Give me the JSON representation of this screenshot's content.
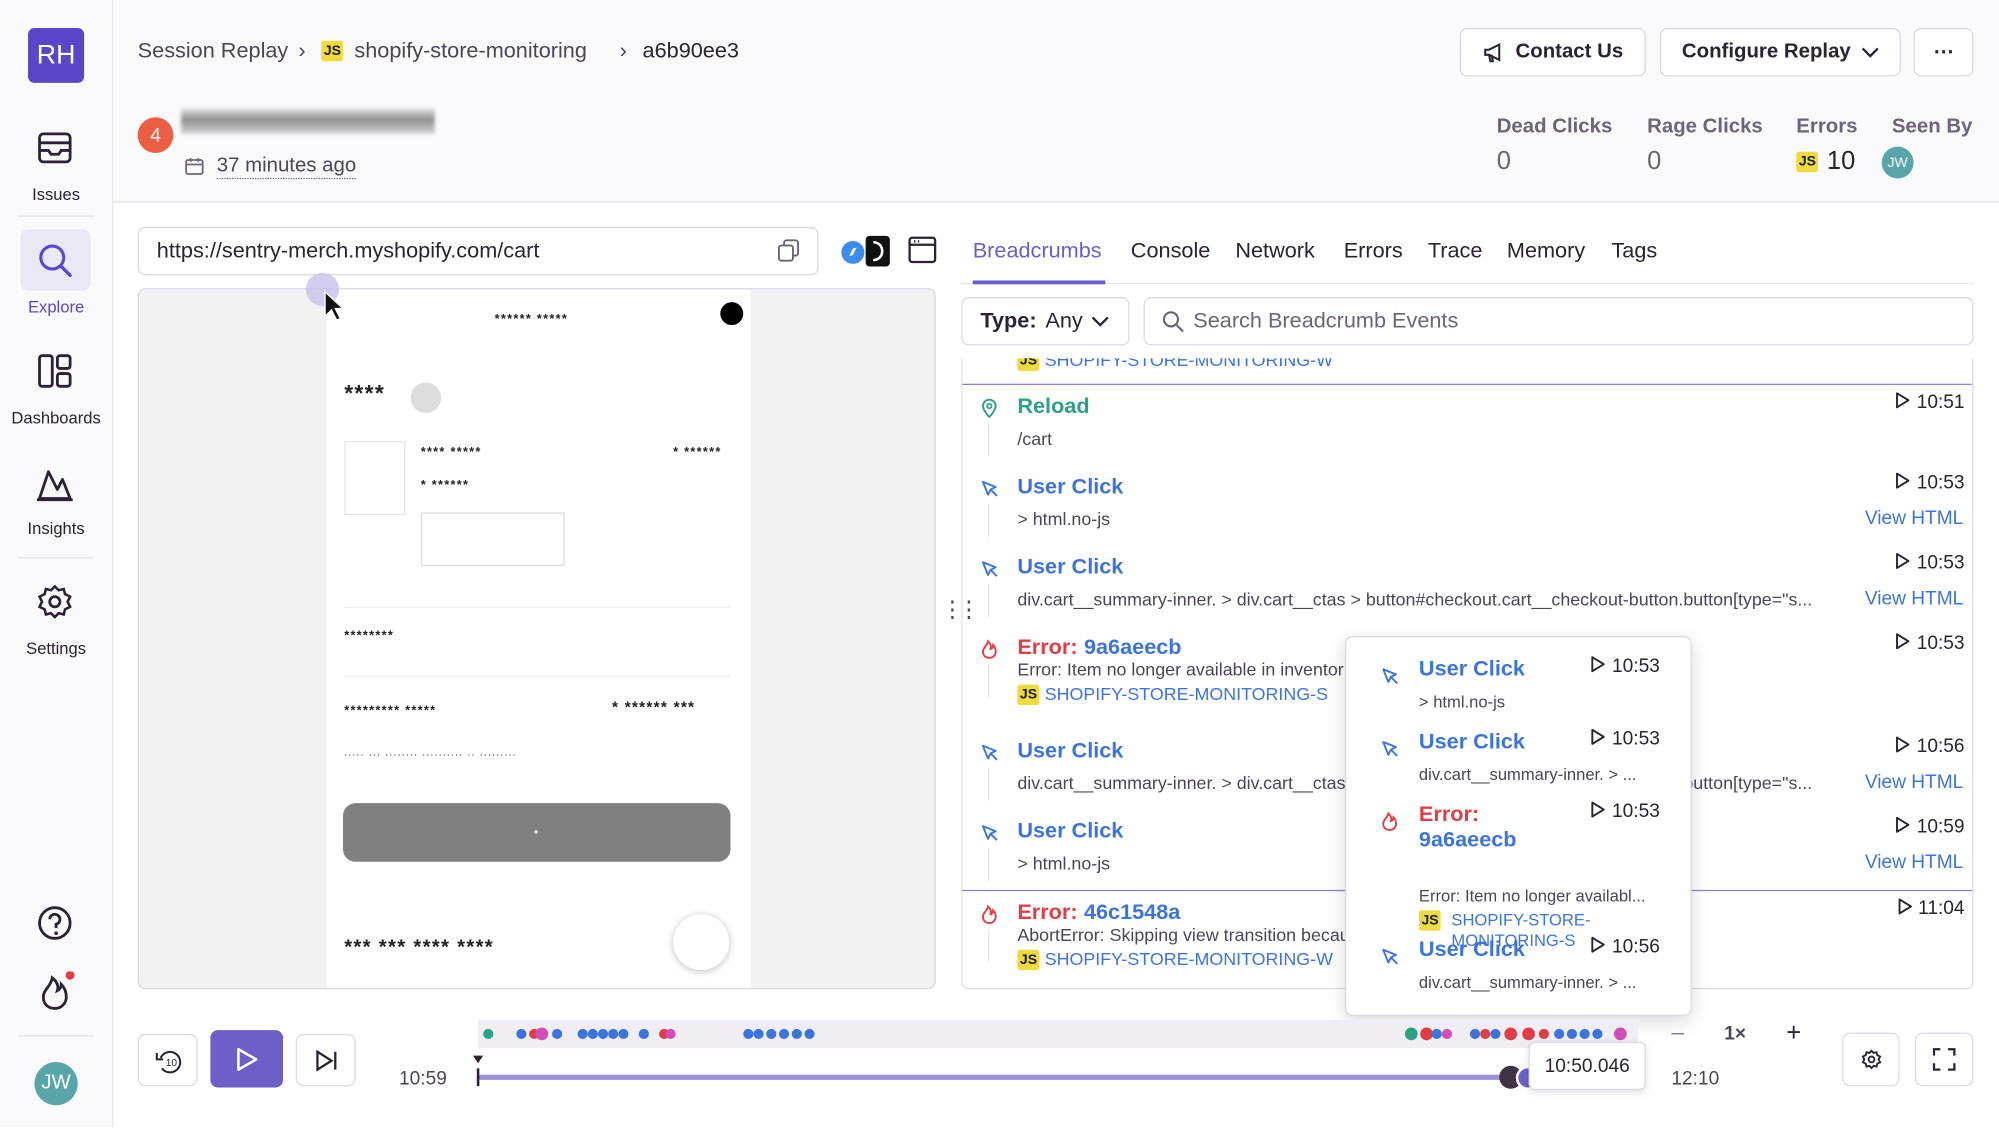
{
  "sidebar": {
    "logo": "RH",
    "nav": [
      "Issues",
      "Explore",
      "Dashboards",
      "Insights",
      "Settings"
    ],
    "avatar": "JW"
  },
  "js_badge": "JS",
  "header": {
    "breadcrumbs": [
      "Session Replay",
      "shopify-store-monitoring",
      "a6b90ee3"
    ],
    "buttons": [
      "Contact Us",
      "Configure Replay",
      "⋯"
    ],
    "user_count": 4,
    "time_ago": "37 minutes ago",
    "stats": [
      {
        "label": "Dead Clicks",
        "value": 0
      },
      {
        "label": "Rage Clicks",
        "value": 0
      },
      {
        "label": "Errors",
        "value": 10
      },
      {
        "label": "Seen By",
        "value": "JW"
      }
    ]
  },
  "replay": {
    "url": "https://sentry-merch.myshopify.com/cart",
    "masked": [
      "****** *****",
      "****",
      "**** *****",
      "* ******",
      "* ******",
      "********",
      "********* *****",
      "* ****** ***",
      "..... ... ........ .......... .. .........",
      "*** *** **** ****"
    ]
  },
  "tabs": [
    "Breadcrumbs",
    "Console",
    "Network",
    "Errors",
    "Trace",
    "Memory",
    "Tags"
  ],
  "filter": {
    "type_label": "Type:",
    "type_value": "Any",
    "search_placeholder": "Search Breadcrumb Events"
  },
  "breadcrumbs": {
    "view_html": "View HTML",
    "items": [
      {
        "kind": "partial",
        "project": "SHOPIFY-STORE-MONITORING-W"
      },
      {
        "kind": "reload",
        "title": "Reload",
        "detail": "/cart",
        "time": "10:51"
      },
      {
        "kind": "click",
        "title": "User Click",
        "detail": "> html.no-js",
        "time": "10:53",
        "html": true
      },
      {
        "kind": "click",
        "title": "User Click",
        "detail": "div.cart__summary-inner. > div.cart__ctas > button#checkout.cart__checkout-button.button[type=\"s...",
        "time": "10:53",
        "html": true
      },
      {
        "kind": "error",
        "title": "Error:",
        "link": "9a6aeecb",
        "detail": "Error: Item no longer available in inventor",
        "project": "SHOPIFY-STORE-MONITORING-S",
        "time": "10:53"
      },
      {
        "kind": "click",
        "title": "User Click",
        "detail": "div.cart__summary-inner. > div.cart__ctas > button#checkout.cart__checkout-button.button[type=\"s...",
        "time": "10:56",
        "html": true
      },
      {
        "kind": "click",
        "title": "User Click",
        "detail": "> html.no-js",
        "time": "10:59",
        "html": true
      },
      {
        "kind": "error",
        "title": "Error:",
        "link": "46c1548a",
        "detail": "AbortError: Skipping view transition becau",
        "project": "SHOPIFY-STORE-MONITORING-W",
        "time": "11:04"
      }
    ]
  },
  "popup": [
    {
      "kind": "click",
      "title": "User Click",
      "detail": "> html.no-js",
      "time": "10:53"
    },
    {
      "kind": "click",
      "title": "User Click",
      "detail": "div.cart__summary-inner. > ...",
      "time": "10:53"
    },
    {
      "kind": "error",
      "title": "Error:",
      "link": "9a6aeecb",
      "detail": "Error: Item no longer availabl...",
      "project": "SHOPIFY-STORE-MONITORING-S",
      "time": "10:53"
    },
    {
      "kind": "click",
      "title": "User Click",
      "detail": "div.cart__summary-inner. > ...",
      "time": "10:56"
    }
  ],
  "player": {
    "start": "10:59",
    "end": "12:10",
    "current": "10:50.046",
    "speed": "1×",
    "minus": "–",
    "plus": "+"
  }
}
